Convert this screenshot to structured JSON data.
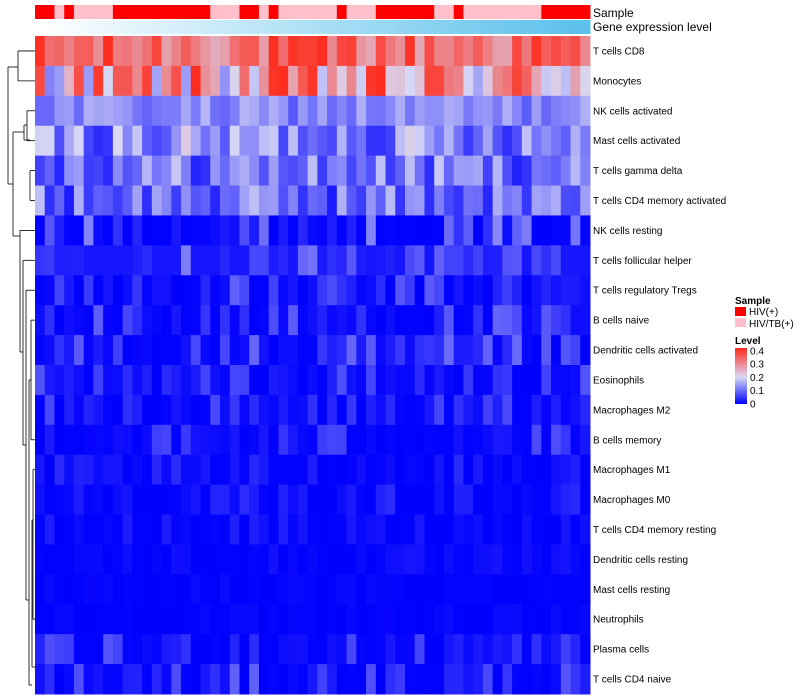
{
  "chart_data": {
    "type": "heatmap",
    "title": "",
    "annotations": {
      "sample_label": "Sample",
      "gene_label": "Gene expression level",
      "sample_groups": [
        "HIV(+)",
        "HIV(+)",
        "HIV/TB(+)",
        "HIV(+)",
        "HIV/TB(+)",
        "HIV/TB(+)",
        "HIV/TB(+)",
        "HIV/TB(+)",
        "HIV(+)",
        "HIV(+)",
        "HIV(+)",
        "HIV(+)",
        "HIV(+)",
        "HIV(+)",
        "HIV(+)",
        "HIV(+)",
        "HIV(+)",
        "HIV(+)",
        "HIV/TB(+)",
        "HIV/TB(+)",
        "HIV/TB(+)",
        "HIV(+)",
        "HIV(+)",
        "HIV/TB(+)",
        "HIV(+)",
        "HIV/TB(+)",
        "HIV/TB(+)",
        "HIV/TB(+)",
        "HIV/TB(+)",
        "HIV/TB(+)",
        "HIV/TB(+)",
        "HIV(+)",
        "HIV/TB(+)",
        "HIV/TB(+)",
        "HIV/TB(+)",
        "HIV(+)",
        "HIV(+)",
        "HIV(+)",
        "HIV(+)",
        "HIV(+)",
        "HIV(+)",
        "HIV/TB(+)",
        "HIV/TB(+)",
        "HIV(+)",
        "HIV/TB(+)",
        "HIV/TB(+)",
        "HIV/TB(+)",
        "HIV/TB(+)",
        "HIV/TB(+)",
        "HIV/TB(+)",
        "HIV/TB(+)",
        "HIV/TB(+)",
        "HIV(+)",
        "HIV(+)",
        "HIV(+)",
        "HIV(+)",
        "HIV(+)"
      ],
      "gene_gradient": [
        "#ffffff",
        "#5bc0eb"
      ]
    },
    "rows": [
      "T cells CD8",
      "Monocytes",
      "NK cells activated",
      "Mast cells activated",
      "T cells gamma delta",
      "T cells CD4 memory activated",
      "NK cells resting",
      "T cells follicular helper",
      "T cells regulatory  Tregs",
      "B cells naive",
      "Dendritic cells activated",
      "Eosinophils",
      "Macrophages M2",
      "B cells memory",
      "Macrophages M1",
      "Macrophages M0",
      "T cells CD4 memory resting",
      "Dendritic cells resting",
      "Mast cells resting",
      "Neutrophils",
      "Plasma cells",
      "T cells CD4 naive"
    ],
    "n_columns": 57,
    "value_ranges": [
      [
        0.25,
        0.42
      ],
      [
        0.12,
        0.42
      ],
      [
        0.08,
        0.17
      ],
      [
        0.04,
        0.22
      ],
      [
        0.03,
        0.19
      ],
      [
        0.02,
        0.18
      ],
      [
        0.0,
        0.13
      ],
      [
        0.02,
        0.13
      ],
      [
        0.0,
        0.09
      ],
      [
        0.0,
        0.1
      ],
      [
        0.0,
        0.1
      ],
      [
        0.0,
        0.08
      ],
      [
        0.0,
        0.07
      ],
      [
        0.0,
        0.08
      ],
      [
        0.0,
        0.04
      ],
      [
        0.0,
        0.04
      ],
      [
        0.0,
        0.03
      ],
      [
        0.0,
        0.02
      ],
      [
        0.0,
        0.01
      ],
      [
        0.0,
        0.01
      ],
      [
        0.0,
        0.08
      ],
      [
        0.0,
        0.09
      ]
    ],
    "color_scale": {
      "min": 0,
      "max": 0.42,
      "colors": [
        "#0000ff",
        "#d9d9f5",
        "#ff2a1a"
      ],
      "ticks": [
        "0.4",
        "0.3",
        "0.2",
        "0.1",
        "0"
      ]
    },
    "legend": {
      "sample_title": "Sample",
      "sample_entries": [
        {
          "label": "HIV(+)",
          "color": "#ff0000"
        },
        {
          "label": "HIV/TB(+)",
          "color": "#ffc0cb"
        }
      ],
      "level_title": "Level"
    }
  }
}
